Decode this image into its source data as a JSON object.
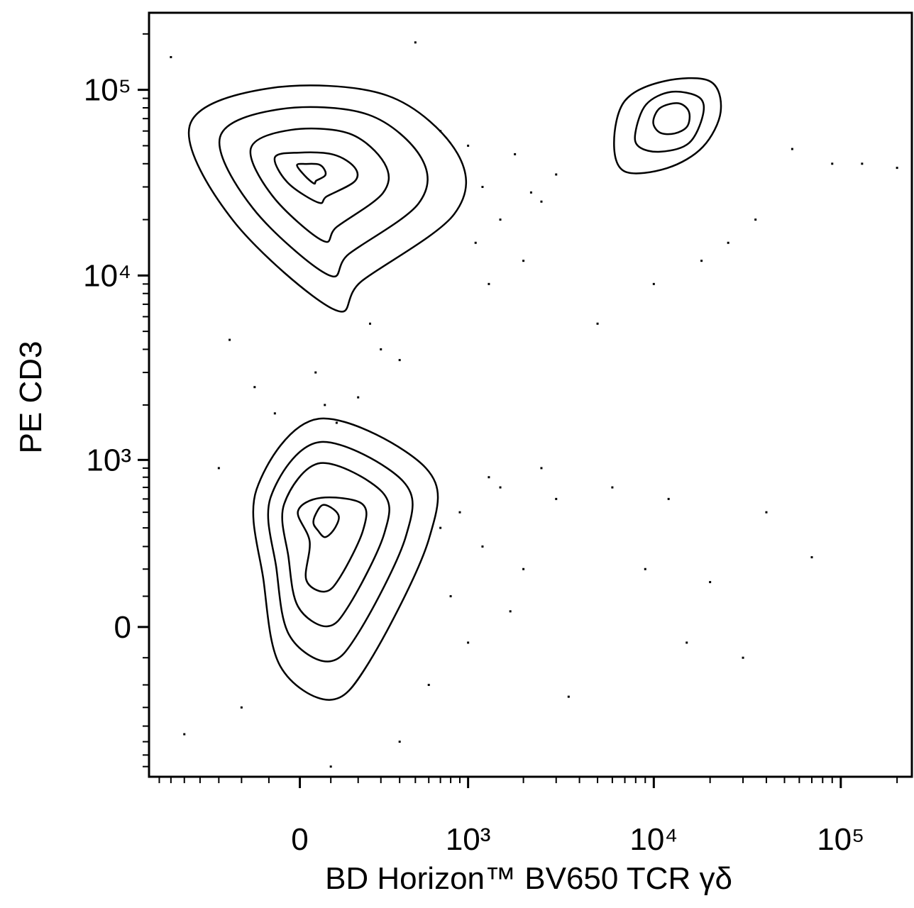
{
  "chart_data": {
    "type": "contour",
    "xlabel": "BD Horizon™ BV650 TCR  γδ",
    "ylabel": "PE CD3",
    "xscale": "biexponential",
    "yscale": "biexponential",
    "xlim": [
      -800,
      240000
    ],
    "ylim": [
      -800,
      260000
    ],
    "xticks": [
      0,
      {
        "value": 1000,
        "label": "10³"
      },
      {
        "value": 10000,
        "label": "10⁴"
      },
      {
        "value": 100000,
        "label": "10⁵"
      }
    ],
    "yticks": [
      0,
      {
        "value": 1000,
        "label": "10³"
      },
      {
        "value": 10000,
        "label": "10⁴"
      },
      {
        "value": 100000,
        "label": "10⁵"
      }
    ],
    "xminorticks": [
      -700,
      -600,
      -500,
      -400,
      -300,
      -200,
      -100,
      100,
      200,
      300,
      400,
      500,
      600,
      700,
      800,
      900,
      2000,
      3000,
      4000,
      5000,
      6000,
      7000,
      8000,
      9000,
      20000,
      30000,
      40000,
      50000,
      60000,
      70000,
      80000,
      90000,
      200000
    ],
    "yminorticks": [
      -700,
      -600,
      -500,
      -400,
      -300,
      -200,
      -100,
      100,
      200,
      300,
      400,
      500,
      600,
      700,
      800,
      900,
      2000,
      3000,
      4000,
      5000,
      6000,
      7000,
      8000,
      9000,
      20000,
      30000,
      40000,
      50000,
      60000,
      70000,
      80000,
      90000,
      200000
    ],
    "color": "#000000",
    "contours": [
      {
        "x": [
          -464,
          -99,
          330,
          875,
          837,
          215,
          109,
          -233
        ],
        "y": [
          64100,
          101900,
          93300,
          45200,
          21400,
          9340,
          6580,
          19650
        ]
      },
      {
        "x": [
          -294,
          -63,
          241,
          543,
          522,
          165,
          90,
          -156
        ],
        "y": [
          55700,
          78700,
          73600,
          42900,
          24400,
          13100,
          10100,
          23000
        ]
      },
      {
        "x": [
          -164,
          -29,
          165,
          317,
          311,
          121,
          73,
          -87
        ],
        "y": [
          48400,
          60800,
          58200,
          40300,
          27900,
          18300,
          15400,
          26700
        ]
      },
      {
        "x": [
          -80,
          -4,
          109,
          186,
          186,
          87,
          59,
          -38
        ],
        "y": [
          43200,
          45900,
          44800,
          38200,
          32100,
          26700,
          24700,
          31600
        ]
      },
      {
        "x": [
          -9,
          20,
          61,
          80,
          80,
          52,
          45,
          16
        ],
        "y": [
          39300,
          39900,
          39600,
          36900,
          34400,
          32400,
          31300,
          34400
        ]
      },
      {
        "x": [
          -143,
          61,
          577,
          602,
          245,
          96,
          -63,
          -118
        ],
        "y": [
          681,
          1685,
          901,
          340,
          -116,
          -264,
          -128,
          154
        ]
      },
      {
        "x": [
          -94,
          63,
          420,
          438,
          203,
          91,
          -34,
          -75
        ],
        "y": [
          614,
          1255,
          760,
          353,
          -16,
          -113,
          -25,
          203
        ]
      },
      {
        "x": [
          -50,
          66,
          307,
          317,
          167,
          87,
          -6,
          -36
        ],
        "y": [
          558,
          960,
          657,
          369,
          73,
          2,
          66,
          251
        ]
      },
      {
        "x": [
          -6,
          68,
          215,
          220,
          133,
          80,
          20,
          31
        ],
        "y": [
          507,
          609,
          563,
          386,
          170,
          116,
          159,
          325
        ]
      },
      {
        "x": [
          50,
          73,
          109,
          128,
          109,
          80,
          57,
          43
        ],
        "y": [
          486,
          553,
          522,
          464,
          386,
          348,
          386,
          428
        ]
      },
      {
        "x": [
          6130,
          7000,
          11300,
          20000,
          22800,
          18300,
          11800,
          7000
        ],
        "y": [
          51600,
          87200,
          111200,
          111200,
          76400,
          49300,
          37900,
          36300
        ]
      },
      {
        "x": [
          7970,
          9100,
          12400,
          17500,
          18300,
          15400,
          10800,
          8340
        ],
        "y": [
          58800,
          83400,
          97500,
          91000,
          73000,
          51600,
          46400,
          49300
        ]
      },
      {
        "x": [
          9930,
          10800,
          13500,
          15400,
          15100,
          12900,
          10800
        ],
        "y": [
          66900,
          79800,
          84700,
          76400,
          63600,
          58200,
          58800
        ]
      }
    ],
    "events": {
      "x": [
        -150,
        50,
        200,
        300,
        -80,
        120,
        400,
        250,
        -250,
        80,
        1200,
        1500,
        1800,
        2500,
        1100,
        2000,
        3000,
        1300,
        2200,
        900,
        1200,
        1500,
        2000,
        2500,
        1000,
        800,
        3000,
        1700,
        1300,
        6000,
        9000,
        12000,
        20000,
        40000,
        70000,
        30000,
        15000,
        5000,
        10000,
        25000,
        35000,
        18000,
        55000,
        90000,
        130000,
        200000,
        3500,
        -500,
        100,
        700,
        1000,
        -600,
        500,
        -200,
        400,
        600,
        700,
        -300
      ],
      "y": [
        2500,
        3000,
        2200,
        4000,
        1800,
        1600,
        3500,
        5500,
        4500,
        2000,
        30000,
        20000,
        45000,
        25000,
        15000,
        12000,
        35000,
        9000,
        28000,
        500,
        300,
        700,
        200,
        900,
        -50,
        100,
        600,
        50,
        800,
        700,
        200,
        600,
        150,
        500,
        250,
        -100,
        -50,
        5500,
        9000,
        15000,
        20000,
        12000,
        48000,
        40000,
        40000,
        38000,
        -250,
        -450,
        -700,
        60000,
        50000,
        150000,
        180000,
        -300,
        -500,
        -200,
        400,
        900
      ]
    }
  }
}
